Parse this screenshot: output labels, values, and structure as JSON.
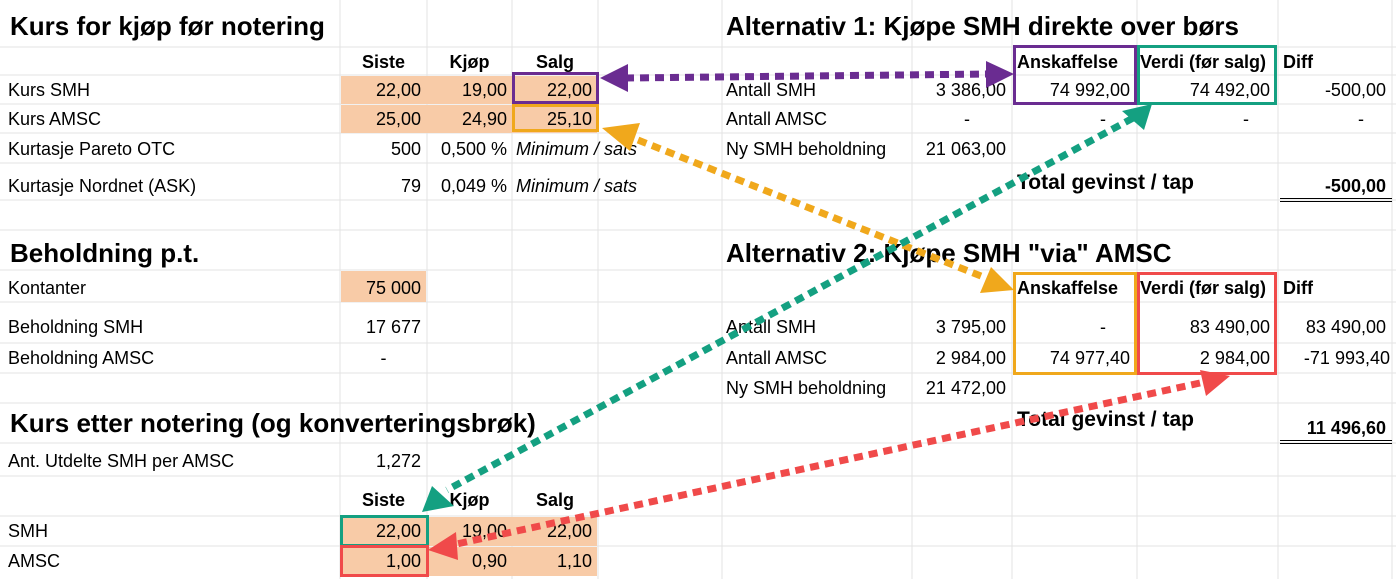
{
  "colors": {
    "fill_orange": "#f8cba7",
    "purple": "#6a2c91",
    "orange": "#f0a81c",
    "teal": "#14a081",
    "red": "#f04a4a"
  },
  "s1": {
    "title": "Kurs for kjøp før notering",
    "col_siste": "Siste",
    "col_kjop": "Kjøp",
    "col_salg": "Salg",
    "r1_label": "Kurs SMH",
    "r1_siste": "22,00",
    "r1_kjop": "19,00",
    "r1_salg": "22,00",
    "r2_label": "Kurs AMSC",
    "r2_siste": "25,00",
    "r2_kjop": "24,90",
    "r2_salg": "25,10",
    "r3_label": "Kurtasje Pareto OTC",
    "r3_siste": "500",
    "r3_kjop": "0,500 %",
    "r3_note": "Minimum / sats",
    "r4_label": "Kurtasje Nordnet (ASK)",
    "r4_siste": "79",
    "r4_kjop": "0,049 %",
    "r4_note": "Minimum / sats"
  },
  "s2": {
    "title": "Beholdning p.t.",
    "kontanter_label": "Kontanter",
    "kontanter_val": "75 000",
    "smh_label": "Beholdning SMH",
    "smh_val": "17 677",
    "amsc_label": "Beholdning AMSC",
    "amsc_val": "-"
  },
  "s3": {
    "title": "Kurs etter notering (og konverteringsbrøk)",
    "ratio_label": "Ant. Utdelte SMH per AMSC",
    "ratio_val": "1,272",
    "col_siste": "Siste",
    "col_kjop": "Kjøp",
    "col_salg": "Salg",
    "smh_label": "SMH",
    "smh_siste": "22,00",
    "smh_kjop": "19,00",
    "smh_salg": "22,00",
    "amsc_label": "AMSC",
    "amsc_siste": "1,00",
    "amsc_kjop": "0,90",
    "amsc_salg": "1,10"
  },
  "alt1": {
    "title": "Alternativ 1: Kjøpe SMH direkte over børs",
    "col_anskaffelse": "Anskaffelse",
    "col_verdi": "Verdi (før salg)",
    "col_diff": "Diff",
    "r1_label": "Antall SMH",
    "r1_num": "3 386,00",
    "r1_ansk": "74 992,00",
    "r1_verdi": "74 492,00",
    "r1_diff": "-500,00",
    "r2_label": "Antall AMSC",
    "r2_num": "-",
    "r2_ansk": "-",
    "r2_verdi": "-",
    "r2_diff": "-",
    "r3_label": "Ny SMH beholdning",
    "r3_num": "21 063,00",
    "total_label": "Total gevinst / tap",
    "total_val": "-500,00"
  },
  "alt2": {
    "title": "Alternativ 2: Kjøpe SMH \"via\" AMSC",
    "col_anskaffelse": "Anskaffelse",
    "col_verdi": "Verdi (før salg)",
    "col_diff": "Diff",
    "r1_label": "Antall SMH",
    "r1_num": "3 795,00",
    "r1_ansk": "-",
    "r1_verdi": "83 490,00",
    "r1_diff": "83 490,00",
    "r2_label": "Antall AMSC",
    "r2_num": "2 984,00",
    "r2_ansk": "74 977,40",
    "r2_verdi": "2 984,00",
    "r2_diff": "-71 993,40",
    "r3_label": "Ny SMH beholdning",
    "r3_num": "21 472,00",
    "total_label": "Total gevinst / tap",
    "total_val": "11 496,60"
  }
}
